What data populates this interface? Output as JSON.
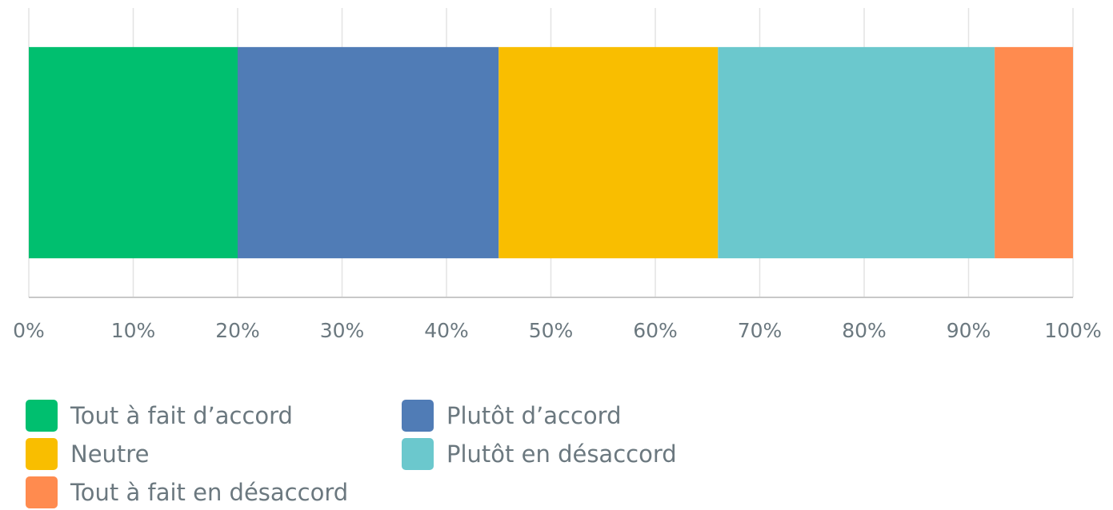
{
  "chart_data": {
    "type": "stacked-bar-horizontal",
    "categories": [
      null
    ],
    "series": [
      {
        "name": "Tout à fait d’accord",
        "color": "#00bf6f",
        "values": [
          20
        ]
      },
      {
        "name": "Plutôt d’accord",
        "color": "#507cb6",
        "values": [
          25
        ]
      },
      {
        "name": "Neutre",
        "color": "#f9be00",
        "values": [
          21
        ]
      },
      {
        "name": "Plutôt en désaccord",
        "color": "#6bc8cd",
        "values": [
          26.5
        ]
      },
      {
        "name": "Tout à fait en désaccord",
        "color": "#ff8b4f",
        "values": [
          7.5
        ]
      }
    ],
    "xlim": [
      0,
      100
    ],
    "xticks": [
      {
        "value": 0,
        "label": "0%"
      },
      {
        "value": 10,
        "label": "10%"
      },
      {
        "value": 20,
        "label": "20%"
      },
      {
        "value": 30,
        "label": "30%"
      },
      {
        "value": 40,
        "label": "40%"
      },
      {
        "value": 50,
        "label": "50%"
      },
      {
        "value": 60,
        "label": "60%"
      },
      {
        "value": 70,
        "label": "70%"
      },
      {
        "value": 80,
        "label": "80%"
      },
      {
        "value": 90,
        "label": "90%"
      },
      {
        "value": 100,
        "label": "100%"
      }
    ],
    "grid": true,
    "legend": "bottom"
  }
}
